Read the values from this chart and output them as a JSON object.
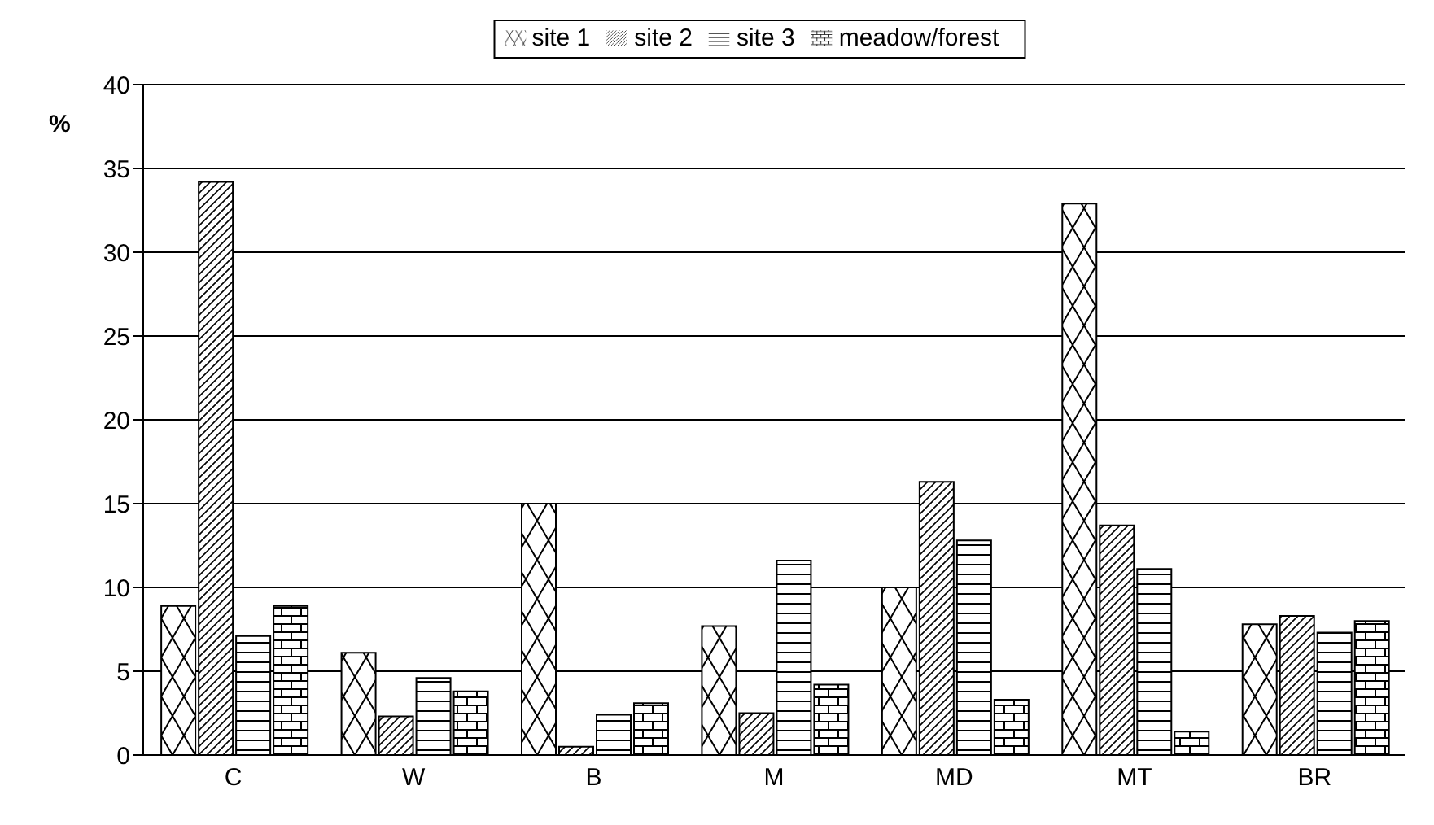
{
  "chart_data": {
    "type": "bar",
    "ylabel": "%",
    "categories": [
      "C",
      "W",
      "B",
      "M",
      "MD",
      "MT",
      "BR"
    ],
    "series": [
      {
        "name": "site 1",
        "color": "#000000",
        "values": [
          8.9,
          6.1,
          15.0,
          7.7,
          10.0,
          32.9,
          7.8
        ]
      },
      {
        "name": "site 2",
        "color": "#000000",
        "values": [
          34.2,
          2.3,
          0.5,
          2.5,
          16.3,
          13.7,
          8.3
        ]
      },
      {
        "name": "site 3",
        "color": "#000000",
        "values": [
          7.1,
          4.6,
          2.4,
          11.6,
          12.8,
          11.1,
          7.3
        ]
      },
      {
        "name": "meadow/forest",
        "color": "#000000",
        "values": [
          8.9,
          3.8,
          3.1,
          4.2,
          3.3,
          1.4,
          8.0
        ]
      }
    ],
    "ylim": [
      0,
      40
    ],
    "yticks": [
      0,
      5,
      10,
      15,
      20,
      25,
      30,
      35,
      40
    ],
    "grid": "y",
    "legend": "top"
  }
}
